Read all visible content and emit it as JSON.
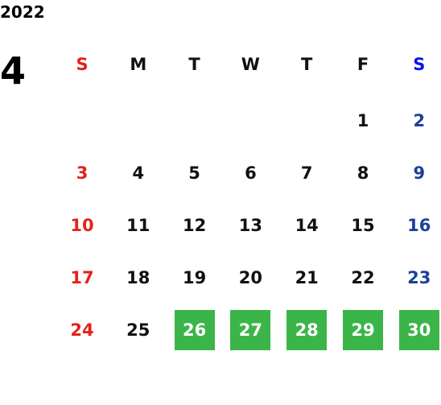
{
  "year": "2022",
  "month": "4",
  "weekdays": [
    "S",
    "M",
    "T",
    "W",
    "T",
    "F",
    "S"
  ],
  "weeks": [
    [
      null,
      null,
      null,
      null,
      null,
      "1",
      "2"
    ],
    [
      "3",
      "4",
      "5",
      "6",
      "7",
      "8",
      "9"
    ],
    [
      "10",
      "11",
      "12",
      "13",
      "14",
      "15",
      "16"
    ],
    [
      "17",
      "18",
      "19",
      "20",
      "21",
      "22",
      "23"
    ],
    [
      "24",
      "25",
      {
        "day": "26",
        "highlighted": true
      },
      {
        "day": "27",
        "highlighted": true
      },
      {
        "day": "28",
        "highlighted": true
      },
      {
        "day": "29",
        "highlighted": true
      },
      {
        "day": "30",
        "highlighted": true
      }
    ]
  ],
  "colors": {
    "sunday": "#e2231a",
    "saturday_header": "#0a14e6",
    "saturday": "#1d3f97",
    "weekday": "#111111",
    "highlight": "#3bb54a",
    "highlight_text": "#ffffff"
  }
}
